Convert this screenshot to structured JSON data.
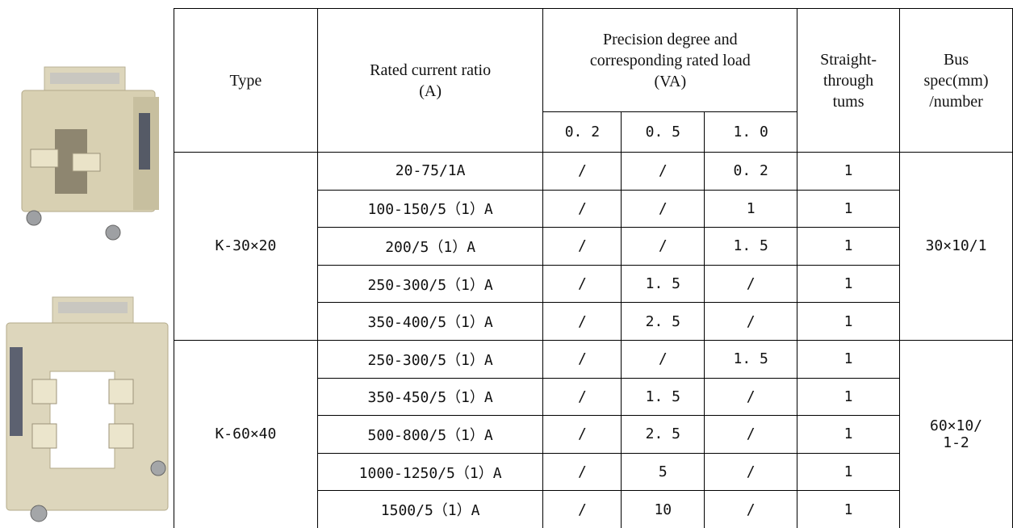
{
  "table": {
    "headers": {
      "type": "Type",
      "ratio": [
        "Rated current ratio",
        "(A)"
      ],
      "precision": [
        "Precision degree and",
        "corresponding rated load",
        "(VA)"
      ],
      "classes": [
        "0. 2",
        "0. 5",
        "1. 0"
      ],
      "turns": [
        "Straight-",
        "through",
        "tums"
      ],
      "bus": [
        "Bus",
        "spec(mm)",
        "/number"
      ]
    },
    "groups": [
      {
        "type": "K-30×20",
        "bus": [
          "30×10/1"
        ],
        "rows": [
          [
            "20-75/1A",
            "/",
            "/",
            "0. 2",
            "1"
          ],
          [
            "100-150/5（1）A",
            "/",
            "/",
            "1",
            "1"
          ],
          [
            "200/5（1）A",
            "/",
            "/",
            "1. 5",
            "1"
          ],
          [
            "250-300/5（1）A",
            "/",
            "1. 5",
            "/",
            "1"
          ],
          [
            "350-400/5（1）A",
            "/",
            "2. 5",
            "/",
            "1"
          ]
        ]
      },
      {
        "type": "K-60×40",
        "bus": [
          "60×10/",
          "1-2"
        ],
        "rows": [
          [
            "250-300/5（1）A",
            "/",
            "/",
            "1. 5",
            "1"
          ],
          [
            "350-450/5（1）A",
            "/",
            "1. 5",
            "/",
            "1"
          ],
          [
            "500-800/5（1）A",
            "/",
            "2. 5",
            "/",
            "1"
          ],
          [
            "1000-1250/5（1）A",
            "/",
            "5",
            "/",
            "1"
          ],
          [
            "1500/5（1）A",
            "/",
            "10",
            "/",
            "1"
          ]
        ]
      }
    ]
  }
}
